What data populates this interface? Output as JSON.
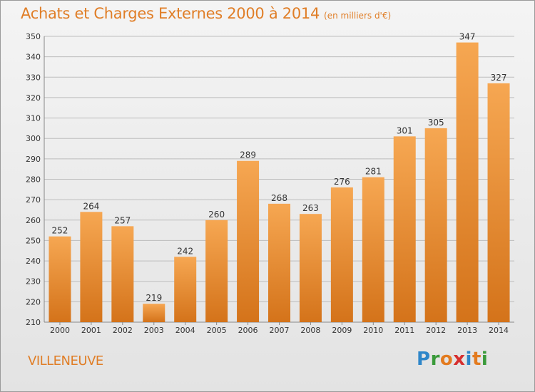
{
  "title": "Achats et Charges Externes 2000 à 2014",
  "subtitle": "(en milliers d'€)",
  "city": "VILLENEUVE",
  "logo": {
    "letters": [
      "P",
      "r",
      "o",
      "x",
      "i",
      "t",
      "i"
    ],
    "colors": [
      "#2e86c9",
      "#3a9a3a",
      "#e37b1f",
      "#d62f2f",
      "#2e86c9",
      "#e37b1f",
      "#3a9a3a"
    ]
  },
  "colors": {
    "bar_light": "#f6a752",
    "bar_dark": "#d4731a",
    "title": "#e07e27",
    "grid": "#bdbdbd"
  },
  "chart_data": {
    "type": "bar",
    "title": "Achats et Charges Externes 2000 à 2014",
    "categories": [
      "2000",
      "2001",
      "2002",
      "2003",
      "2004",
      "2005",
      "2006",
      "2007",
      "2008",
      "2009",
      "2010",
      "2011",
      "2012",
      "2013",
      "2014"
    ],
    "values": [
      252,
      264,
      257,
      219,
      242,
      260,
      289,
      268,
      263,
      276,
      281,
      301,
      305,
      347,
      327
    ],
    "ylim": [
      210,
      350
    ],
    "yticks": [
      210,
      220,
      230,
      240,
      250,
      260,
      270,
      280,
      290,
      300,
      310,
      320,
      330,
      340,
      350
    ],
    "grid": true,
    "xlabel": "",
    "ylabel": ""
  }
}
